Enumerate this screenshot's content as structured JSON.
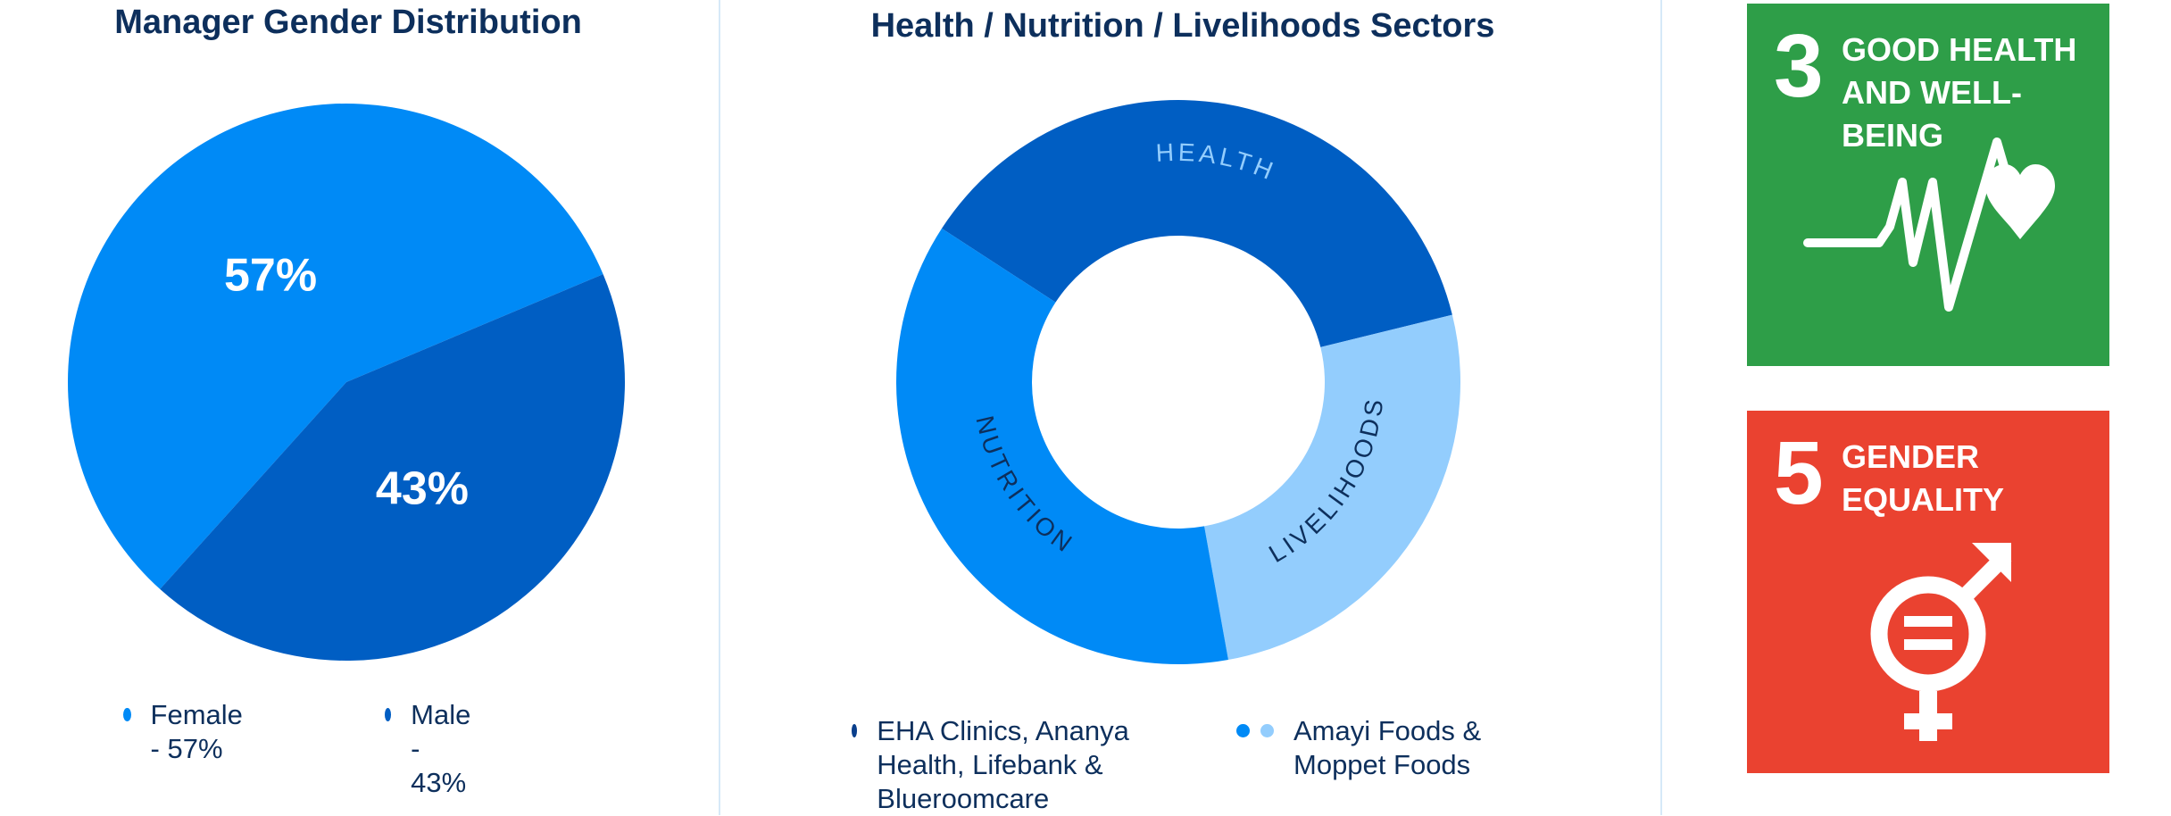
{
  "chart_data": [
    {
      "type": "pie",
      "title": "Manager Gender Distribution",
      "categories": [
        "Female",
        "Male"
      ],
      "values": [
        57,
        43
      ],
      "unit": "%",
      "slice_labels": [
        "57%",
        "43%"
      ],
      "colors": [
        "#008af6",
        "#005ec3"
      ],
      "legend": {
        "placement": "bottom",
        "entries": [
          {
            "label": "Female - 57%",
            "color": "#008af6"
          },
          {
            "label": "Male - 43%",
            "color": "#005ec3"
          }
        ]
      }
    },
    {
      "type": "pie",
      "style": "donut",
      "title": "Health / Nutrition / Livelihoods Sectors",
      "categories": [
        "HEALTH",
        "LIVELIHOODS",
        "NUTRITION"
      ],
      "values": [
        37,
        26,
        37
      ],
      "colors": [
        "#005ec3",
        "#93cdfd",
        "#008af6"
      ],
      "label_colors": [
        "#93cdfd",
        "#0d2f5c",
        "#0d2f5c"
      ],
      "legend": {
        "placement": "bottom",
        "entries": [
          {
            "label": "EHA Clinics, Ananya Health, Lifebank & Blueroomcare",
            "colors": [
              "#0a3f8c"
            ]
          },
          {
            "label": "Amayi Foods & Moppet Foods",
            "colors": [
              "#008af6",
              "#93cdfd"
            ]
          }
        ]
      }
    }
  ],
  "sdg_cards": [
    {
      "number": "3",
      "name": "GOOD HEALTH AND WELL-BEING",
      "color": "#2e9e48",
      "icon": "heartbeat-icon"
    },
    {
      "number": "5",
      "name": "GENDER EQUALITY",
      "color": "#ea4230",
      "icon": "gender-equality-icon"
    }
  ]
}
